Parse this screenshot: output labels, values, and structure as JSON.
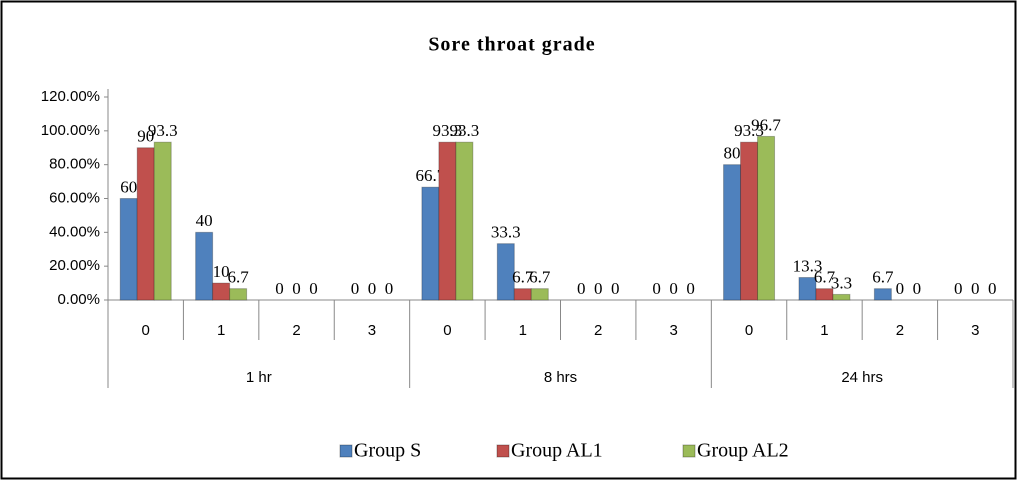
{
  "chart_data": {
    "type": "bar",
    "title": "Sore throat grade",
    "category_groups": [
      {
        "name": "1 hr",
        "categories": [
          "0",
          "1",
          "2",
          "3"
        ]
      },
      {
        "name": "8 hrs",
        "categories": [
          "0",
          "1",
          "2",
          "3"
        ]
      },
      {
        "name": "24 hrs",
        "categories": [
          "0",
          "1",
          "2",
          "3"
        ]
      }
    ],
    "series": [
      {
        "name": "Group S",
        "color": "#4f81bd",
        "values": [
          60,
          40,
          0,
          0,
          66.7,
          33.3,
          0,
          0,
          80,
          13.3,
          6.7,
          0
        ]
      },
      {
        "name": "Group AL1",
        "color": "#c0504d",
        "values": [
          90,
          10,
          0,
          0,
          93.3,
          6.7,
          0,
          0,
          93.3,
          6.7,
          0,
          0
        ]
      },
      {
        "name": "Group AL2",
        "color": "#9bbb59",
        "values": [
          93.3,
          6.7,
          0,
          0,
          93.3,
          6.7,
          0,
          0,
          96.7,
          3.3,
          0,
          0
        ]
      }
    ],
    "ylim": [
      0,
      120
    ],
    "yticks": [
      {
        "value": 0,
        "label": "0.00%"
      },
      {
        "value": 20,
        "label": "20.00%"
      },
      {
        "value": 40,
        "label": "40.00%"
      },
      {
        "value": 60,
        "label": "60.00%"
      },
      {
        "value": 80,
        "label": "80.00%"
      },
      {
        "value": 100,
        "label": "100.00%"
      },
      {
        "value": 120,
        "label": "120.00%"
      }
    ],
    "legend": "bottom"
  }
}
